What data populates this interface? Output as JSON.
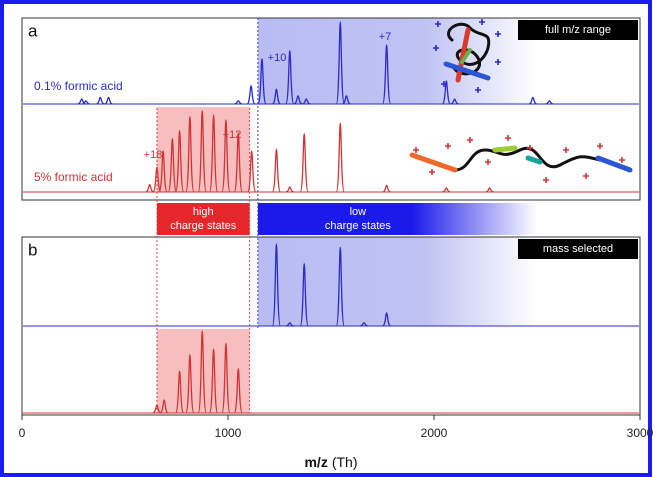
{
  "chart_data": {
    "type": "spectrum",
    "xlim": [
      0,
      3000
    ],
    "xticks": [
      0,
      1000,
      2000,
      3000
    ],
    "xlabel": "m/z",
    "xlabel_unit": "(Th)",
    "bands": [
      {
        "lines": [
          "high",
          "charge states"
        ],
        "color": "#e5262b",
        "range": [
          655,
          1105
        ]
      },
      {
        "lines": [
          "low",
          "charge states"
        ],
        "color": "#1a1aea",
        "range": [
          1145,
          2500
        ]
      }
    ],
    "panels": [
      {
        "label": "a",
        "tag": "full m/z range",
        "annotations": [
          "+10",
          "+7",
          "+18",
          "+12"
        ],
        "series": [
          {
            "name": "0.1% formic acid",
            "color": "#2b2bc8",
            "highlight": [
              1145,
              2500
            ],
            "x": [
              290,
              310,
              380,
              420,
              1050,
              1112,
              1165,
              1235,
              1300,
              1340,
              1380,
              1545,
              1575,
              1770,
              2060,
              2100,
              2480,
              2560
            ],
            "values": [
              6,
              4,
              8,
              8,
              4,
              22,
              55,
              18,
              65,
              10,
              6,
              100,
              10,
              72,
              28,
              6,
              8,
              4
            ]
          },
          {
            "name": "5% formic acid",
            "color": "#d23434",
            "highlight": [
              655,
              1105
            ],
            "x": [
              620,
              655,
              685,
              730,
              765,
              815,
              875,
              930,
              990,
              1050,
              1115,
              1235,
              1300,
              1370,
              1545,
              1770,
              2060,
              2270
            ],
            "values": [
              9,
              30,
              50,
              65,
              75,
              92,
              99,
              94,
              88,
              72,
              50,
              52,
              6,
              71,
              84,
              8,
              5,
              5
            ]
          }
        ]
      },
      {
        "label": "b",
        "tag": "mass selected",
        "annotations": [],
        "series": [
          {
            "name": "",
            "color": "#2b2bc8",
            "highlight": [
              1145,
              2500
            ],
            "x": [
              1235,
              1300,
              1370,
              1545,
              1660,
              1770
            ],
            "values": [
              100,
              4,
              76,
              96,
              4,
              16
            ]
          },
          {
            "name": "",
            "color": "#d23434",
            "highlight": [
              655,
              1105
            ],
            "x": [
              655,
              690,
              765,
              815,
              875,
              930,
              990,
              1050
            ],
            "values": [
              10,
              16,
              51,
              71,
              100,
              78,
              85,
              54
            ]
          }
        ]
      }
    ]
  }
}
